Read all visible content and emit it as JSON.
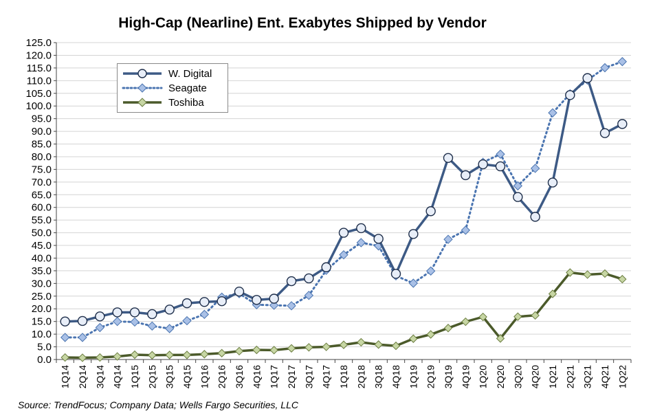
{
  "chart_data": {
    "type": "line",
    "title": "High-Cap (Nearline) Ent. Exabytes Shipped by Vendor",
    "xlabel": "",
    "ylabel": "",
    "ylim": [
      0,
      125
    ],
    "yticks": [
      "0.0",
      "5.0",
      "10.0",
      "15.0",
      "20.0",
      "25.0",
      "30.0",
      "35.0",
      "40.0",
      "45.0",
      "50.0",
      "55.0",
      "60.0",
      "65.0",
      "70.0",
      "75.0",
      "80.0",
      "85.0",
      "90.0",
      "95.0",
      "100.0",
      "105.0",
      "110.0",
      "115.0",
      "120.0",
      "125.0"
    ],
    "categories": [
      "1Q14",
      "2Q14",
      "3Q14",
      "4Q14",
      "1Q15",
      "2Q15",
      "3Q15",
      "4Q15",
      "1Q16",
      "2Q16",
      "3Q16",
      "4Q16",
      "1Q17",
      "2Q17",
      "3Q17",
      "4Q17",
      "1Q18",
      "2Q18",
      "3Q18",
      "4Q18",
      "1Q19",
      "2Q19",
      "3Q19",
      "4Q19",
      "1Q20",
      "2Q20",
      "3Q20",
      "4Q20",
      "1Q21",
      "2Q21",
      "3Q21",
      "4Q21",
      "1Q22"
    ],
    "legend_position": "top-left",
    "grid": true,
    "series": [
      {
        "name": "W. Digital",
        "color": "#3d5a85",
        "marker": "circle",
        "line_style": "solid",
        "values": [
          15.0,
          15.2,
          17.0,
          18.6,
          18.6,
          17.9,
          19.7,
          22.2,
          22.7,
          23.0,
          26.8,
          23.5,
          24.0,
          30.9,
          32.0,
          36.4,
          50.0,
          51.8,
          47.6,
          33.8,
          49.5,
          58.5,
          79.5,
          72.7,
          77.0,
          76.2,
          64.1,
          56.3,
          69.8,
          104.3,
          111.0,
          89.3,
          92.9
        ]
      },
      {
        "name": "Seagate",
        "color": "#4a74b0",
        "marker": "diamond",
        "line_style": "dotted",
        "values": [
          8.7,
          8.7,
          12.6,
          15.0,
          14.8,
          13.2,
          12.2,
          15.3,
          17.8,
          24.6,
          26.0,
          21.6,
          21.4,
          21.2,
          25.3,
          35.2,
          41.3,
          46.1,
          44.8,
          33.0,
          30.1,
          34.9,
          47.4,
          51.0,
          77.8,
          81.0,
          68.5,
          75.4,
          97.3,
          104.8,
          110.2,
          115.1,
          117.5
        ]
      },
      {
        "name": "Toshiba",
        "color": "#4b5a2a",
        "marker": "diamond",
        "line_style": "solid",
        "values": [
          0.8,
          0.7,
          0.8,
          1.2,
          1.9,
          1.7,
          1.8,
          1.8,
          2.1,
          2.5,
          3.3,
          3.8,
          3.7,
          4.4,
          4.8,
          5.0,
          5.8,
          6.8,
          5.9,
          5.4,
          8.2,
          9.9,
          12.4,
          14.9,
          16.8,
          8.3,
          16.9,
          17.4,
          25.9,
          34.3,
          33.5,
          33.9,
          31.7
        ]
      }
    ]
  },
  "source": "Source:  TrendFocus; Company Data; Wells Fargo Securities, LLC"
}
